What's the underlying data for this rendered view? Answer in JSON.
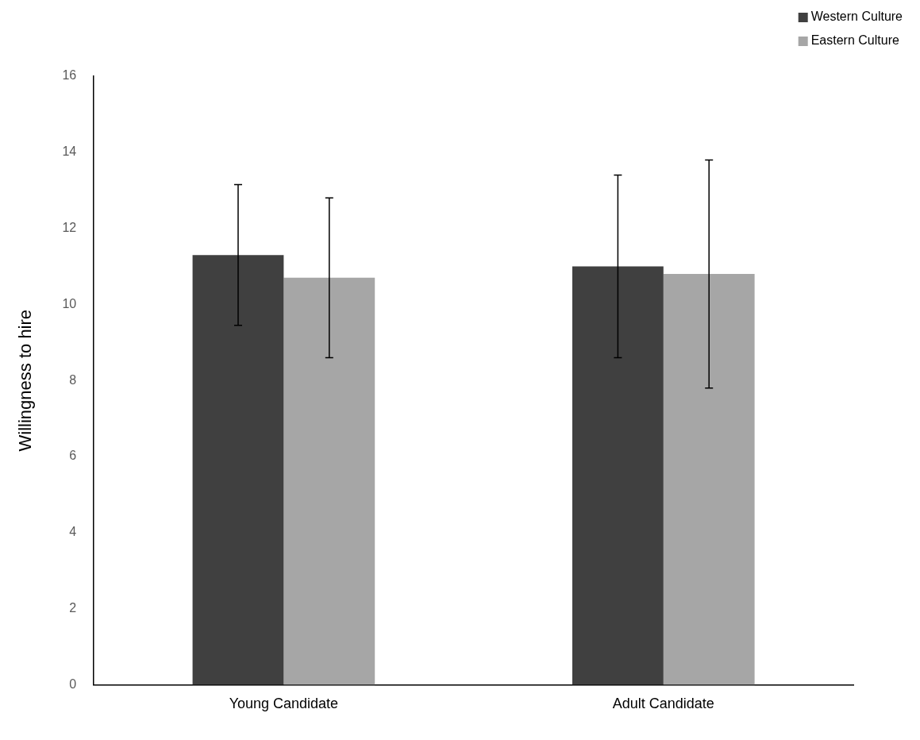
{
  "chart_data": {
    "type": "bar",
    "ylabel": "Willingness to hire",
    "categories": [
      "Young Candidate",
      "Adult Candidate"
    ],
    "series": [
      {
        "name": "Western Culture",
        "color": "#404040",
        "values": [
          11.3,
          11.0
        ],
        "errors": [
          1.85,
          2.4
        ]
      },
      {
        "name": "Eastern Culture",
        "color": "#a6a6a6",
        "values": [
          10.7,
          10.8
        ],
        "errors": [
          2.1,
          3.0
        ]
      }
    ],
    "ylim": [
      0,
      16
    ],
    "yticks": [
      0,
      2,
      4,
      6,
      8,
      10,
      12,
      14,
      16
    ],
    "grid": false,
    "legend": "top right"
  }
}
